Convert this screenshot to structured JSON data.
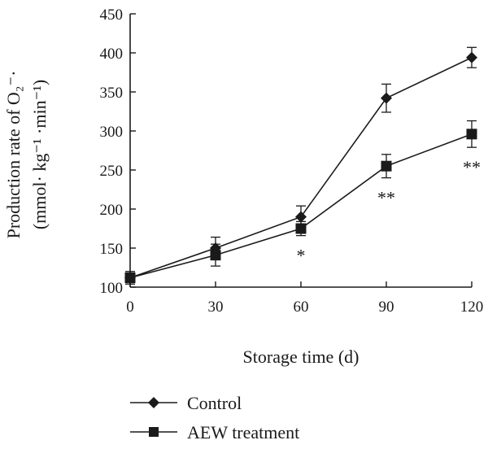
{
  "chart_data": {
    "type": "line",
    "xlabel": "Storage time (d)",
    "ylabel_line1": "Production rate of O₂⁻·",
    "ylabel_line2": "(mmol· kg⁻¹ ·min⁻¹)",
    "x": [
      0,
      30,
      60,
      90,
      120
    ],
    "xlim": [
      0,
      120
    ],
    "ylim": [
      100,
      450
    ],
    "xticks": [
      0,
      30,
      60,
      90,
      120
    ],
    "yticks": [
      100,
      150,
      200,
      250,
      300,
      350,
      400,
      450
    ],
    "grid": false,
    "legend_position": "bottom-center",
    "series": [
      {
        "name": "Control",
        "marker": "diamond",
        "values": [
          112,
          150,
          190,
          342,
          394
        ],
        "errors": [
          8,
          14,
          14,
          18,
          13
        ]
      },
      {
        "name": "AEW treatment",
        "marker": "square",
        "values": [
          112,
          141,
          175,
          255,
          296
        ],
        "errors": [
          8,
          14,
          9,
          15,
          17
        ]
      }
    ],
    "annotations": [
      {
        "x": 60,
        "text": "*"
      },
      {
        "x": 90,
        "text": "**"
      },
      {
        "x": 120,
        "text": "**"
      }
    ]
  }
}
